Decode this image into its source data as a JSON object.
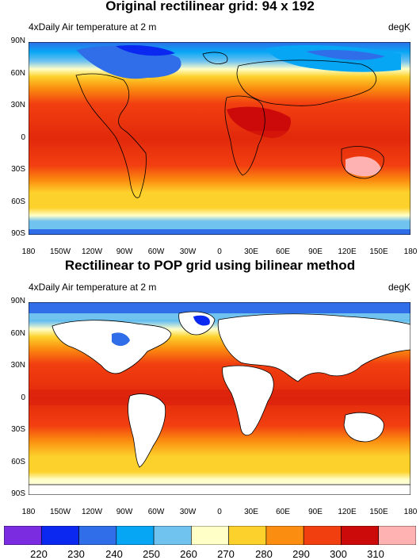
{
  "panel1": {
    "title": "Original rectilinear grid: 94 x 192",
    "subtitle_left": "4xDaily Air temperature at 2 m",
    "subtitle_right": "degK"
  },
  "panel2": {
    "title": "Rectilinear to POP grid using bilinear method",
    "subtitle_left": "4xDaily Air temperature at 2 m",
    "subtitle_right": "degK"
  },
  "axes": {
    "lat_labels": [
      "90N",
      "60N",
      "30N",
      "0",
      "30S",
      "60S",
      "90S"
    ],
    "lon_labels": [
      "180",
      "150W",
      "120W",
      "90W",
      "60W",
      "30W",
      "0",
      "30E",
      "60E",
      "90E",
      "120E",
      "150E",
      "180"
    ]
  },
  "colorbar": {
    "labels": [
      "220",
      "230",
      "240",
      "250",
      "260",
      "270",
      "280",
      "290",
      "300",
      "310"
    ],
    "colors": [
      "#7b2be0",
      "#0a28f0",
      "#2f6ee8",
      "#07a6f5",
      "#70c2ef",
      "#ffffc8",
      "#fdd12c",
      "#fb8e10",
      "#f23f10",
      "#cc0a0a",
      "#ffb2b2"
    ]
  },
  "colors": {
    "background": "#ffffff",
    "land_mask": "#ffffff",
    "coastline": "#000000"
  }
}
